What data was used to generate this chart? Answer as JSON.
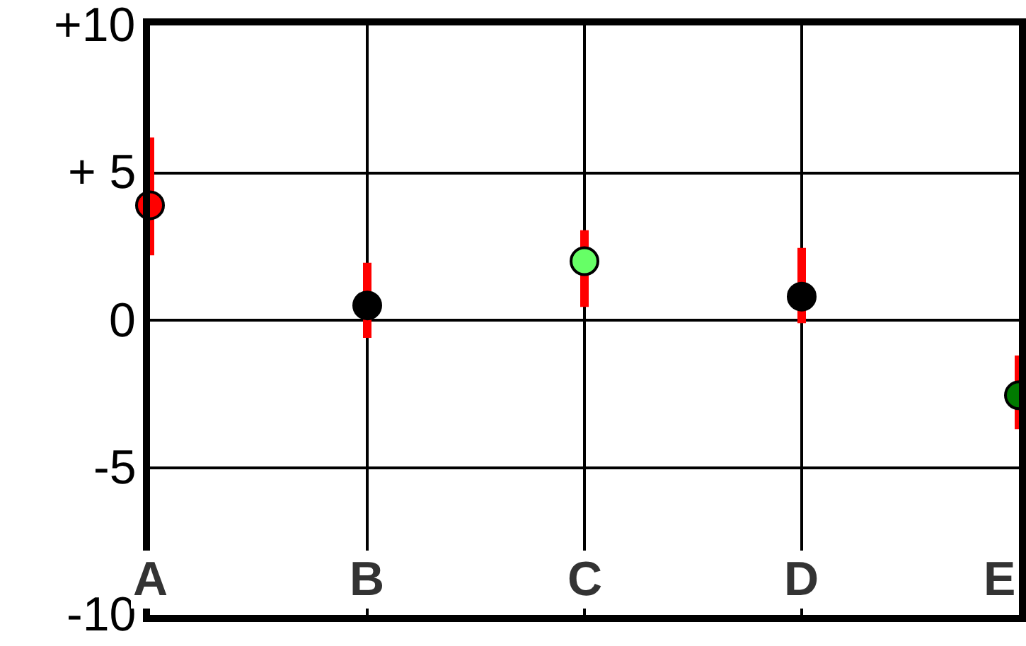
{
  "chart_data": {
    "type": "scatter",
    "categories": [
      "A",
      "B",
      "C",
      "D",
      "E"
    ],
    "values": [
      3.9,
      0.5,
      2.0,
      0.8,
      -2.55
    ],
    "colors": [
      "#ff0000",
      "#000000",
      "#66ff66",
      "#000000",
      "#007a00"
    ],
    "errors": [
      [
        2.2,
        6.2
      ],
      [
        -0.6,
        1.95
      ],
      [
        0.45,
        3.05
      ],
      [
        -0.1,
        2.45
      ],
      [
        -3.7,
        -1.2
      ]
    ],
    "ylim": [
      -10,
      10
    ],
    "yticks": [
      {
        "value": 10,
        "label": "+10"
      },
      {
        "value": 5,
        "label": "+ 5"
      },
      0,
      -5,
      -10
    ],
    "grid": true,
    "marker": "circle"
  }
}
